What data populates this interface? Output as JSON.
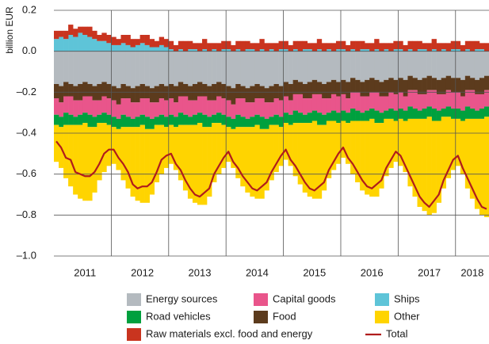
{
  "chart_data": {
    "type": "bar",
    "stacked": true,
    "y_label": "billion EUR",
    "categories": [
      null,
      null,
      null,
      null,
      null,
      null,
      "2011",
      null,
      null,
      null,
      null,
      null,
      null,
      null,
      null,
      null,
      null,
      null,
      "2012",
      null,
      null,
      null,
      null,
      null,
      null,
      null,
      null,
      null,
      null,
      null,
      "2013",
      null,
      null,
      null,
      null,
      null,
      null,
      null,
      null,
      null,
      null,
      null,
      "2014",
      null,
      null,
      null,
      null,
      null,
      null,
      null,
      null,
      null,
      null,
      null,
      "2015",
      null,
      null,
      null,
      null,
      null,
      null,
      null,
      null,
      null,
      null,
      null,
      "2016",
      null,
      null,
      null,
      null,
      null,
      null,
      null,
      null,
      null,
      null,
      null,
      "2017",
      null,
      null,
      null,
      null,
      null,
      null,
      null,
      null,
      "2018",
      null,
      null,
      null
    ],
    "ylim": [
      -1.0,
      0.2
    ],
    "yticks": [
      0.2,
      {
        "value": 0,
        "label": "0.0"
      },
      {
        "value": -0.2,
        "label": "–0.2"
      },
      {
        "value": -0.4,
        "label": "–0.4"
      },
      {
        "value": -0.6,
        "label": "–0.6"
      },
      {
        "value": -0.8,
        "label": "–0.8"
      },
      {
        "value": -1.0,
        "label": "–1.0"
      }
    ],
    "grid": true,
    "series": [
      {
        "name": "Energy sources",
        "color": "#b4babf",
        "values": [
          -0.16,
          -0.17,
          -0.15,
          -0.16,
          -0.17,
          -0.16,
          -0.15,
          -0.16,
          -0.17,
          -0.16,
          -0.15,
          -0.16,
          -0.17,
          -0.18,
          -0.16,
          -0.17,
          -0.18,
          -0.17,
          -0.16,
          -0.17,
          -0.18,
          -0.17,
          -0.16,
          -0.17,
          -0.16,
          -0.17,
          -0.15,
          -0.16,
          -0.17,
          -0.16,
          -0.15,
          -0.16,
          -0.17,
          -0.16,
          -0.15,
          -0.16,
          -0.17,
          -0.18,
          -0.16,
          -0.17,
          -0.18,
          -0.17,
          -0.16,
          -0.17,
          -0.18,
          -0.17,
          -0.16,
          -0.17,
          -0.15,
          -0.16,
          -0.14,
          -0.15,
          -0.16,
          -0.15,
          -0.14,
          -0.15,
          -0.16,
          -0.15,
          -0.14,
          -0.15,
          -0.14,
          -0.15,
          -0.13,
          -0.14,
          -0.15,
          -0.14,
          -0.13,
          -0.14,
          -0.15,
          -0.14,
          -0.13,
          -0.14,
          -0.13,
          -0.14,
          -0.12,
          -0.13,
          -0.14,
          -0.13,
          -0.12,
          -0.13,
          -0.14,
          -0.13,
          -0.12,
          -0.13,
          -0.13,
          -0.14,
          -0.12,
          -0.13,
          -0.14,
          -0.13,
          -0.12
        ]
      },
      {
        "name": "Food",
        "color": "#5c3b1d",
        "values": [
          -0.07,
          -0.08,
          -0.07,
          -0.06,
          -0.07,
          -0.08,
          -0.07,
          -0.06,
          -0.07,
          -0.08,
          -0.07,
          -0.07,
          -0.07,
          -0.08,
          -0.07,
          -0.06,
          -0.07,
          -0.08,
          -0.07,
          -0.06,
          -0.07,
          -0.08,
          -0.07,
          -0.07,
          -0.07,
          -0.08,
          -0.07,
          -0.06,
          -0.07,
          -0.08,
          -0.07,
          -0.06,
          -0.07,
          -0.08,
          -0.07,
          -0.07,
          -0.07,
          -0.08,
          -0.07,
          -0.06,
          -0.07,
          -0.08,
          -0.07,
          -0.06,
          -0.07,
          -0.08,
          -0.07,
          -0.07,
          -0.07,
          -0.08,
          -0.07,
          -0.06,
          -0.07,
          -0.08,
          -0.07,
          -0.06,
          -0.07,
          -0.08,
          -0.07,
          -0.07,
          -0.07,
          -0.08,
          -0.07,
          -0.06,
          -0.07,
          -0.08,
          -0.07,
          -0.06,
          -0.07,
          -0.08,
          -0.07,
          -0.07,
          -0.07,
          -0.08,
          -0.07,
          -0.06,
          -0.07,
          -0.08,
          -0.07,
          -0.06,
          -0.07,
          -0.08,
          -0.07,
          -0.07,
          -0.07,
          -0.08,
          -0.07,
          -0.06,
          -0.07,
          -0.08,
          -0.07
        ]
      },
      {
        "name": "Capital goods",
        "color": "#e9558b",
        "values": [
          -0.08,
          -0.07,
          -0.08,
          -0.09,
          -0.08,
          -0.07,
          -0.08,
          -0.09,
          -0.08,
          -0.07,
          -0.08,
          -0.08,
          -0.08,
          -0.07,
          -0.08,
          -0.09,
          -0.08,
          -0.07,
          -0.08,
          -0.09,
          -0.08,
          -0.07,
          -0.08,
          -0.08,
          -0.08,
          -0.07,
          -0.08,
          -0.09,
          -0.08,
          -0.07,
          -0.08,
          -0.09,
          -0.08,
          -0.07,
          -0.08,
          -0.08,
          -0.08,
          -0.07,
          -0.08,
          -0.09,
          -0.08,
          -0.07,
          -0.08,
          -0.09,
          -0.08,
          -0.07,
          -0.08,
          -0.08,
          -0.08,
          -0.07,
          -0.08,
          -0.09,
          -0.08,
          -0.07,
          -0.08,
          -0.09,
          -0.08,
          -0.07,
          -0.08,
          -0.08,
          -0.08,
          -0.07,
          -0.08,
          -0.09,
          -0.08,
          -0.07,
          -0.08,
          -0.09,
          -0.08,
          -0.07,
          -0.08,
          -0.08,
          -0.08,
          -0.07,
          -0.08,
          -0.09,
          -0.08,
          -0.07,
          -0.08,
          -0.09,
          -0.08,
          -0.07,
          -0.08,
          -0.08,
          -0.08,
          -0.07,
          -0.08,
          -0.09,
          -0.08,
          -0.07,
          -0.08
        ]
      },
      {
        "name": "Road vehicles",
        "color": "#00a03e",
        "values": [
          -0.05,
          -0.05,
          -0.06,
          -0.05,
          -0.04,
          -0.05,
          -0.05,
          -0.06,
          -0.05,
          -0.04,
          -0.05,
          -0.05,
          -0.05,
          -0.05,
          -0.06,
          -0.05,
          -0.04,
          -0.05,
          -0.05,
          -0.06,
          -0.05,
          -0.04,
          -0.05,
          -0.05,
          -0.05,
          -0.05,
          -0.06,
          -0.05,
          -0.04,
          -0.05,
          -0.05,
          -0.06,
          -0.05,
          -0.04,
          -0.05,
          -0.05,
          -0.05,
          -0.05,
          -0.06,
          -0.05,
          -0.04,
          -0.05,
          -0.05,
          -0.06,
          -0.05,
          -0.04,
          -0.05,
          -0.05,
          -0.05,
          -0.05,
          -0.06,
          -0.05,
          -0.04,
          -0.05,
          -0.05,
          -0.06,
          -0.05,
          -0.04,
          -0.05,
          -0.05,
          -0.05,
          -0.05,
          -0.06,
          -0.05,
          -0.04,
          -0.05,
          -0.05,
          -0.06,
          -0.05,
          -0.04,
          -0.05,
          -0.05,
          -0.05,
          -0.05,
          -0.06,
          -0.05,
          -0.04,
          -0.05,
          -0.05,
          -0.06,
          -0.05,
          -0.04,
          -0.05,
          -0.05,
          -0.05,
          -0.05,
          -0.06,
          -0.05,
          -0.04,
          -0.05,
          -0.05
        ]
      },
      {
        "name": "Other",
        "color": "#ffd400",
        "values": [
          -0.18,
          -0.2,
          -0.26,
          -0.3,
          -0.34,
          -0.36,
          -0.38,
          -0.36,
          -0.32,
          -0.28,
          -0.24,
          -0.2,
          -0.18,
          -0.2,
          -0.26,
          -0.3,
          -0.34,
          -0.36,
          -0.38,
          -0.36,
          -0.32,
          -0.28,
          -0.24,
          -0.2,
          -0.19,
          -0.21,
          -0.27,
          -0.32,
          -0.36,
          -0.38,
          -0.4,
          -0.38,
          -0.34,
          -0.29,
          -0.25,
          -0.21,
          -0.17,
          -0.19,
          -0.25,
          -0.29,
          -0.32,
          -0.34,
          -0.36,
          -0.34,
          -0.3,
          -0.27,
          -0.23,
          -0.19,
          -0.18,
          -0.2,
          -0.26,
          -0.3,
          -0.34,
          -0.36,
          -0.38,
          -0.36,
          -0.32,
          -0.28,
          -0.24,
          -0.2,
          -0.18,
          -0.2,
          -0.26,
          -0.3,
          -0.34,
          -0.36,
          -0.38,
          -0.36,
          -0.32,
          -0.28,
          -0.24,
          -0.2,
          -0.23,
          -0.25,
          -0.33,
          -0.38,
          -0.43,
          -0.45,
          -0.48,
          -0.45,
          -0.4,
          -0.35,
          -0.3,
          -0.25,
          -0.23,
          -0.26,
          -0.34,
          -0.39,
          -0.44,
          -0.47,
          -0.49
        ]
      },
      {
        "name": "Ships",
        "color": "#5ec4d8",
        "values": [
          0.06,
          0.07,
          0.06,
          0.08,
          0.07,
          0.09,
          0.08,
          0.07,
          0.06,
          0.05,
          0.05,
          0.04,
          0.03,
          0.03,
          0.04,
          0.03,
          0.02,
          0.03,
          0.04,
          0.03,
          0.02,
          0.02,
          0.03,
          0.02,
          0.01,
          0,
          0.01,
          0,
          0.01,
          0.01,
          0,
          0.01,
          0,
          0.01,
          0,
          0.01,
          0.01,
          0,
          0.01,
          0,
          0.01,
          0.01,
          0,
          0.01,
          0,
          0.01,
          0,
          0.01,
          0.01,
          0,
          0.01,
          0,
          0.01,
          0.01,
          0,
          0.01,
          0,
          0.01,
          0,
          0.01,
          0.01,
          0,
          0.01,
          0,
          0.01,
          0.01,
          0,
          0.01,
          0,
          0.01,
          0,
          0.01,
          0.01,
          0,
          0.01,
          0,
          0.01,
          0.01,
          0,
          0.01,
          0,
          0.01,
          0,
          0.01,
          0.01,
          0,
          0.01,
          0,
          0.01,
          0.01,
          0
        ]
      },
      {
        "name": "Raw materials excl. food and energy",
        "color": "#c9341f",
        "values": [
          0.04,
          0.03,
          0.04,
          0.05,
          0.04,
          0.03,
          0.04,
          0.05,
          0.04,
          0.03,
          0.04,
          0.04,
          0.04,
          0.03,
          0.04,
          0.05,
          0.04,
          0.03,
          0.04,
          0.05,
          0.04,
          0.03,
          0.04,
          0.04,
          0.04,
          0.03,
          0.04,
          0.05,
          0.04,
          0.03,
          0.04,
          0.05,
          0.04,
          0.03,
          0.04,
          0.04,
          0.04,
          0.03,
          0.04,
          0.05,
          0.04,
          0.03,
          0.04,
          0.05,
          0.04,
          0.03,
          0.04,
          0.04,
          0.04,
          0.03,
          0.04,
          0.05,
          0.04,
          0.03,
          0.04,
          0.05,
          0.04,
          0.03,
          0.04,
          0.04,
          0.04,
          0.03,
          0.04,
          0.05,
          0.04,
          0.03,
          0.04,
          0.05,
          0.04,
          0.03,
          0.04,
          0.04,
          0.04,
          0.03,
          0.04,
          0.05,
          0.04,
          0.03,
          0.04,
          0.05,
          0.04,
          0.03,
          0.04,
          0.04,
          0.04,
          0.03,
          0.04,
          0.05,
          0.04,
          0.03,
          0.04
        ]
      },
      {
        "name": "Total",
        "type": "line",
        "color": "#b01c1c",
        "values": [
          -0.44,
          -0.47,
          -0.52,
          -0.53,
          -0.59,
          -0.6,
          -0.61,
          -0.61,
          -0.59,
          -0.55,
          -0.5,
          -0.48,
          -0.48,
          -0.52,
          -0.55,
          -0.59,
          -0.65,
          -0.67,
          -0.66,
          -0.66,
          -0.64,
          -0.59,
          -0.53,
          -0.51,
          -0.5,
          -0.55,
          -0.58,
          -0.63,
          -0.67,
          -0.7,
          -0.71,
          -0.69,
          -0.67,
          -0.6,
          -0.56,
          -0.52,
          -0.49,
          -0.54,
          -0.57,
          -0.61,
          -0.64,
          -0.67,
          -0.68,
          -0.66,
          -0.64,
          -0.59,
          -0.55,
          -0.51,
          -0.48,
          -0.53,
          -0.56,
          -0.6,
          -0.64,
          -0.67,
          -0.68,
          -0.66,
          -0.64,
          -0.58,
          -0.54,
          -0.5,
          -0.47,
          -0.52,
          -0.55,
          -0.59,
          -0.63,
          -0.66,
          -0.67,
          -0.65,
          -0.63,
          -0.57,
          -0.53,
          -0.49,
          -0.51,
          -0.56,
          -0.61,
          -0.66,
          -0.71,
          -0.74,
          -0.76,
          -0.73,
          -0.7,
          -0.63,
          -0.58,
          -0.53,
          -0.51,
          -0.57,
          -0.62,
          -0.67,
          -0.72,
          -0.76,
          -0.77
        ]
      }
    ]
  }
}
